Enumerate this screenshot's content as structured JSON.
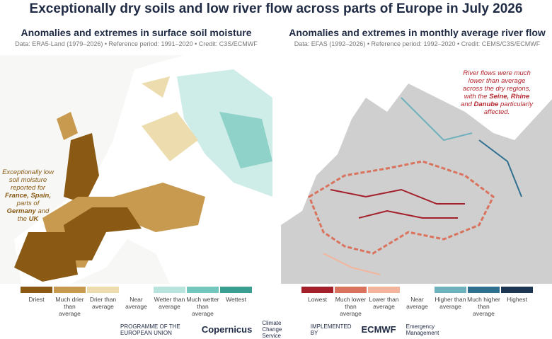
{
  "title": "Exceptionally dry soils and low river flow across parts of Europe in July 2026",
  "panels": [
    {
      "title": "Anomalies and extremes in surface soil moisture",
      "source": "Data: ERA5-Land (1979–2026) • Reference period: 1991–2020 • Credit: C3S/ECMWF",
      "annotation": [
        {
          "text": "Exceptionally low soil moisture reported for "
        },
        {
          "text": "France, Spain,",
          "bold": true
        },
        {
          "text": " parts of "
        },
        {
          "text": "Germany",
          "bold": true
        },
        {
          "text": " and the "
        },
        {
          "text": "UK",
          "bold": true
        }
      ],
      "annotation_color": "#8a5a14",
      "legend": [
        {
          "label": "Driest",
          "color": "#8a5a14"
        },
        {
          "label": "Much drier than average",
          "color": "#c79a4f"
        },
        {
          "label": "Drier than average",
          "color": "#ecdcae"
        },
        {
          "label": "Near average",
          "color": "#ffffff"
        },
        {
          "label": "Wetter than average",
          "color": "#b9e4de"
        },
        {
          "label": "Much wetter than average",
          "color": "#74c7bc"
        },
        {
          "label": "Wettest",
          "color": "#3a9f90"
        }
      ]
    },
    {
      "title": "Anomalies and extremes in monthly average river flow",
      "source": "Data: EFAS (1992–2026) • Reference period: 1992–2020 • Credit: CEMS/C3S/ECMWF",
      "annotation": [
        {
          "text": "River flows were much lower than average across the dry regions, with the "
        },
        {
          "text": "Seine, Rhine",
          "bold": true
        },
        {
          "text": " and "
        },
        {
          "text": "Danube",
          "bold": true
        },
        {
          "text": " particularly affected."
        }
      ],
      "annotation_color": "#b3262e",
      "legend": [
        {
          "label": "Lowest",
          "color": "#a3202a"
        },
        {
          "label": "Much lower than average",
          "color": "#d9735e"
        },
        {
          "label": "Lower than average",
          "color": "#f2b59c"
        },
        {
          "label": "Near average",
          "color": "#ffffff"
        },
        {
          "label": "Higher than average",
          "color": "#6fb0bd"
        },
        {
          "label": "Much higher than average",
          "color": "#2f6f8f"
        },
        {
          "label": "Highest",
          "color": "#1c3552"
        }
      ]
    }
  ],
  "footer": [
    "PROGRAMME OF THE EUROPEAN UNION",
    "Copernicus",
    "Climate Change Service",
    "IMPLEMENTED BY",
    "ECMWF",
    "Emergency Management"
  ]
}
